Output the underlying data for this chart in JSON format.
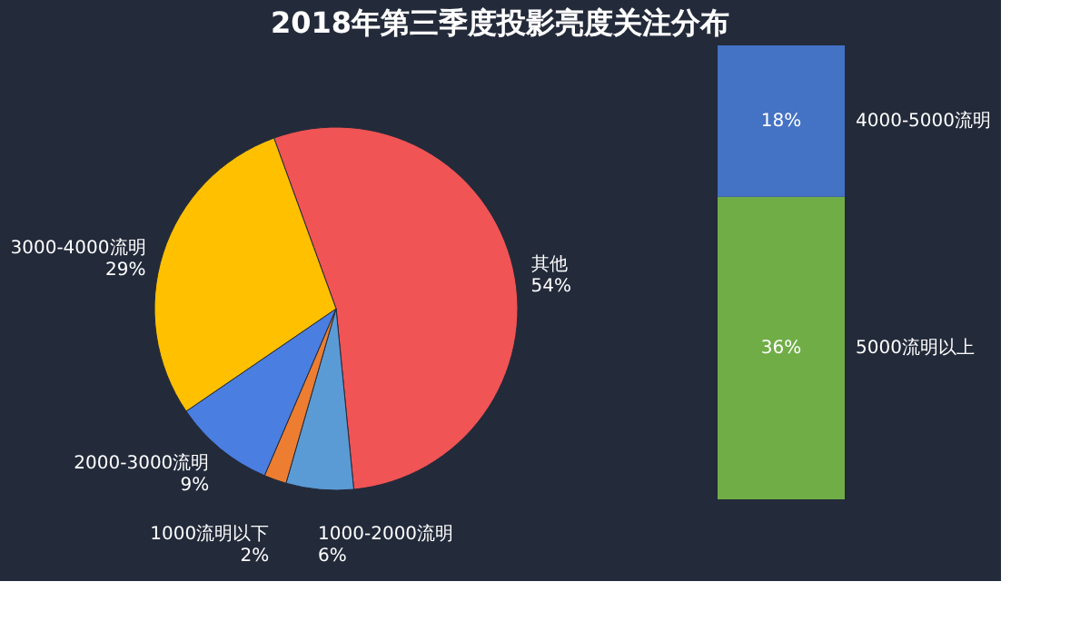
{
  "chart_data": [
    {
      "type": "pie",
      "title": "2018年第三季度投影亮度关注分布",
      "categories": [
        "其他",
        "1000-2000流明",
        "1000流明以下",
        "2000-3000流明",
        "3000-4000流明"
      ],
      "values": [
        54,
        6,
        2,
        9,
        29
      ],
      "colors": [
        "#f05454",
        "#5b9bd5",
        "#ed7d31",
        "#4a7ee0",
        "#ffc000"
      ],
      "value_labels": [
        "54%",
        "6%",
        "2%",
        "9%",
        "29%"
      ]
    },
    {
      "type": "bar",
      "stacked": true,
      "categories": [
        null
      ],
      "series": [
        {
          "name": "5000流明以上",
          "color": "#70ad47",
          "values": [
            36
          ],
          "value_labels": [
            "36%"
          ]
        },
        {
          "name": "4000-5000流明",
          "color": "#4472c4",
          "values": [
            18
          ],
          "value_labels": [
            "18%"
          ]
        }
      ]
    }
  ]
}
